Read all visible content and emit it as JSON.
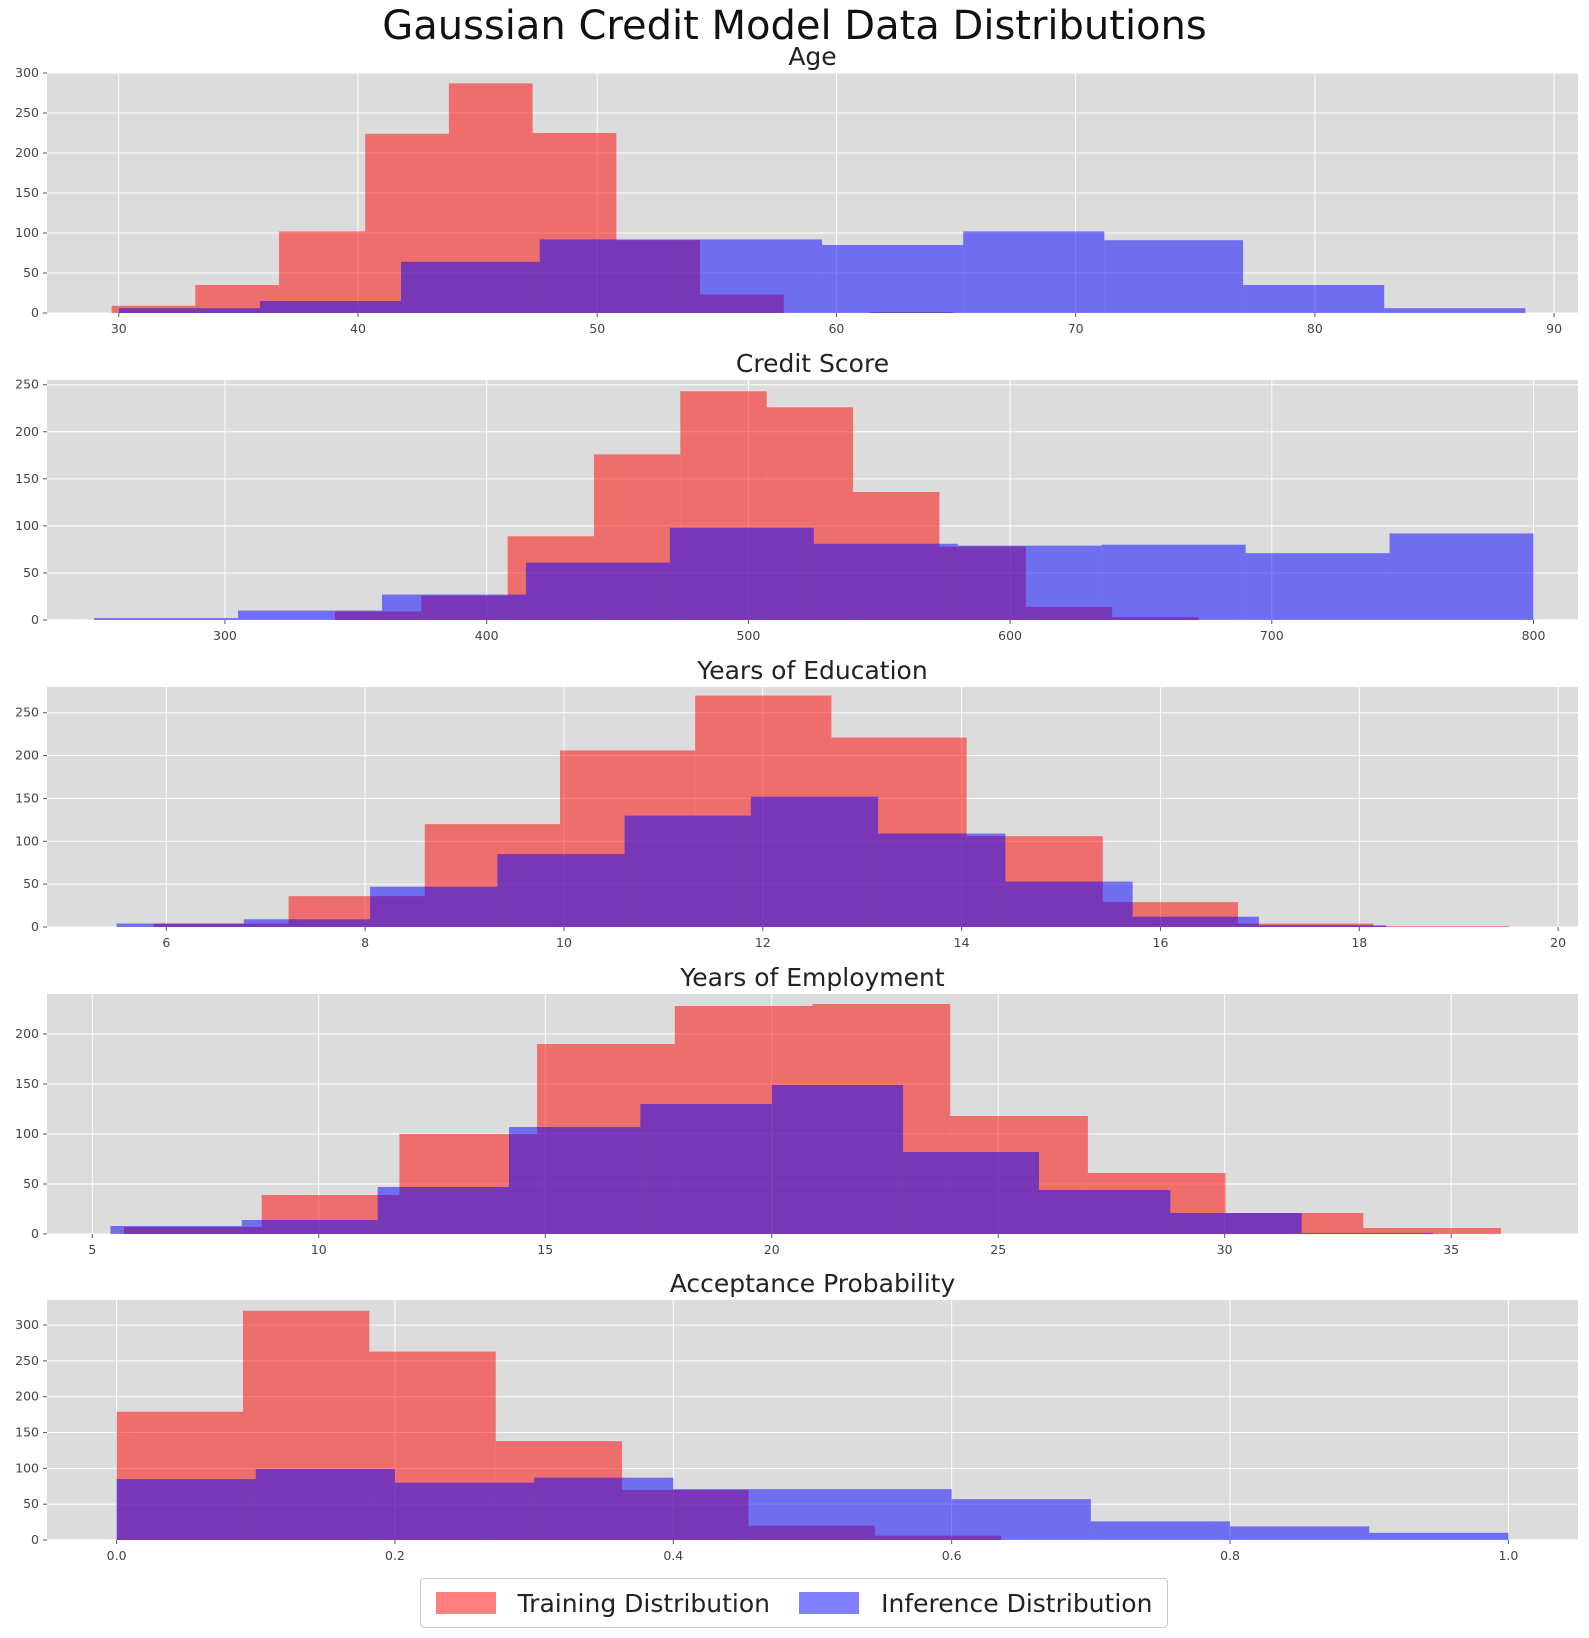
{
  "figure": {
    "title": "Gaussian Credit Model Data Distributions",
    "colors": {
      "training": "#ff0000",
      "inference": "#0000ff",
      "plot_bg": "#dcdcdc",
      "grid": "#ffffff"
    },
    "legend": {
      "placement": "bottom-center",
      "items": [
        {
          "label": "Training Distribution",
          "color": "#ff0000"
        },
        {
          "label": "Inference Distribution",
          "color": "#0000ff"
        }
      ]
    }
  },
  "chart_data": [
    {
      "type": "bar",
      "title": "Age",
      "xlim": [
        27,
        91
      ],
      "ylim": [
        0,
        300
      ],
      "xticks": [
        30,
        40,
        50,
        60,
        70,
        80,
        90
      ],
      "xtick_labels": [
        "30",
        "40",
        "50",
        "60",
        "70",
        "80",
        "90"
      ],
      "yticks": [
        0,
        50,
        100,
        150,
        200,
        250,
        300
      ],
      "ytick_labels": [
        "0",
        "50",
        "100",
        "150",
        "200",
        "250",
        "300"
      ],
      "grid": true,
      "series": [
        {
          "name": "Training Distribution",
          "color": "#ff0000",
          "edges": [
            29.7,
            33.2,
            36.7,
            40.3,
            43.8,
            47.3,
            50.8,
            54.3,
            57.8,
            61.4,
            64.9
          ],
          "counts": [
            9,
            35,
            102,
            224,
            287,
            225,
            91,
            23,
            0,
            1
          ]
        },
        {
          "name": "Inference Distribution",
          "color": "#0000ff",
          "edges": [
            30.0,
            35.9,
            41.8,
            47.6,
            53.5,
            59.4,
            65.3,
            71.2,
            77.0,
            82.9,
            88.8
          ],
          "counts": [
            6,
            15,
            64,
            92,
            92,
            85,
            102,
            91,
            35,
            6
          ]
        }
      ]
    },
    {
      "type": "bar",
      "title": "Credit Score",
      "xlim": [
        232,
        817
      ],
      "ylim": [
        0,
        255
      ],
      "xticks": [
        300,
        400,
        500,
        600,
        700,
        800
      ],
      "xtick_labels": [
        "300",
        "400",
        "500",
        "600",
        "700",
        "800"
      ],
      "yticks": [
        0,
        50,
        100,
        150,
        200,
        250
      ],
      "ytick_labels": [
        "0",
        "50",
        "100",
        "150",
        "200",
        "250"
      ],
      "grid": true,
      "series": [
        {
          "name": "Training Distribution",
          "color": "#ff0000",
          "edges": [
            342,
            375,
            408,
            441,
            474,
            507,
            540,
            573,
            606,
            639,
            672
          ],
          "counts": [
            9,
            26,
            89,
            176,
            243,
            226,
            136,
            78,
            14,
            3
          ]
        },
        {
          "name": "Inference Distribution",
          "color": "#0000ff",
          "edges": [
            250,
            305,
            360,
            415,
            470,
            525,
            580,
            635,
            690,
            745,
            800
          ],
          "counts": [
            2,
            10,
            27,
            61,
            98,
            81,
            79,
            80,
            71,
            92
          ]
        }
      ]
    },
    {
      "type": "bar",
      "title": "Years of Education",
      "xlim": [
        4.8,
        20.2
      ],
      "ylim": [
        0,
        280
      ],
      "xticks": [
        6,
        8,
        10,
        12,
        14,
        16,
        18,
        20
      ],
      "xtick_labels": [
        "6",
        "8",
        "10",
        "12",
        "14",
        "16",
        "18",
        "20"
      ],
      "yticks": [
        0,
        50,
        100,
        150,
        200,
        250
      ],
      "ytick_labels": [
        "0",
        "50",
        "100",
        "150",
        "200",
        "250"
      ],
      "grid": true,
      "series": [
        {
          "name": "Training Distribution",
          "color": "#ff0000",
          "edges": [
            5.87,
            7.23,
            8.6,
            9.96,
            11.32,
            12.69,
            14.05,
            15.42,
            16.78,
            18.14,
            19.51
          ],
          "counts": [
            4,
            36,
            120,
            206,
            270,
            221,
            106,
            29,
            4,
            1
          ]
        },
        {
          "name": "Inference Distribution",
          "color": "#0000ff",
          "edges": [
            5.5,
            6.78,
            8.05,
            9.33,
            10.61,
            11.88,
            13.16,
            14.44,
            15.72,
            16.99,
            18.27
          ],
          "counts": [
            4,
            9,
            47,
            85,
            130,
            152,
            109,
            53,
            12,
            2
          ]
        }
      ]
    },
    {
      "type": "bar",
      "title": "Years of Employment",
      "xlim": [
        4.0,
        37.8
      ],
      "ylim": [
        0,
        240
      ],
      "xticks": [
        5,
        10,
        15,
        20,
        25,
        30,
        35
      ],
      "xtick_labels": [
        "5",
        "10",
        "15",
        "20",
        "25",
        "30",
        "35"
      ],
      "yticks": [
        0,
        50,
        100,
        150,
        200
      ],
      "ytick_labels": [
        "0",
        "50",
        "100",
        "150",
        "200"
      ],
      "grid": true,
      "series": [
        {
          "name": "Training Distribution",
          "color": "#ff0000",
          "edges": [
            5.7,
            8.74,
            11.78,
            14.82,
            17.86,
            20.9,
            23.94,
            26.98,
            30.02,
            33.06,
            36.1
          ],
          "counts": [
            7,
            39,
            100,
            190,
            228,
            230,
            118,
            61,
            21,
            6
          ]
        },
        {
          "name": "Inference Distribution",
          "color": "#0000ff",
          "edges": [
            5.4,
            8.3,
            11.3,
            14.2,
            17.1,
            20.0,
            22.9,
            25.9,
            28.8,
            31.7,
            34.6
          ],
          "counts": [
            8,
            14,
            47,
            107,
            130,
            149,
            82,
            44,
            21,
            1
          ]
        }
      ]
    },
    {
      "type": "bar",
      "title": "Acceptance Probability",
      "xlim": [
        -0.05,
        1.05
      ],
      "ylim": [
        0,
        335
      ],
      "xticks": [
        0.0,
        0.2,
        0.4,
        0.6,
        0.8,
        1.0
      ],
      "xtick_labels": [
        "0.0",
        "0.2",
        "0.4",
        "0.6",
        "0.8",
        "1.0"
      ],
      "yticks": [
        0,
        50,
        100,
        150,
        200,
        250,
        300
      ],
      "ytick_labels": [
        "0",
        "50",
        "100",
        "150",
        "200",
        "250",
        "300"
      ],
      "grid": true,
      "series": [
        {
          "name": "Training Distribution",
          "color": "#ff0000",
          "edges": [
            0.0,
            0.0908,
            0.1816,
            0.2724,
            0.3632,
            0.454,
            0.5448,
            0.6356
          ],
          "counts": [
            179,
            320,
            263,
            138,
            70,
            20,
            6
          ]
        },
        {
          "name": "Inference Distribution",
          "color": "#0000ff",
          "edges": [
            0.0,
            0.1,
            0.2,
            0.3,
            0.4,
            0.5,
            0.6,
            0.7,
            0.8,
            0.9,
            1.0
          ],
          "counts": [
            85,
            99,
            80,
            87,
            71,
            71,
            57,
            26,
            19,
            10
          ]
        }
      ]
    }
  ]
}
